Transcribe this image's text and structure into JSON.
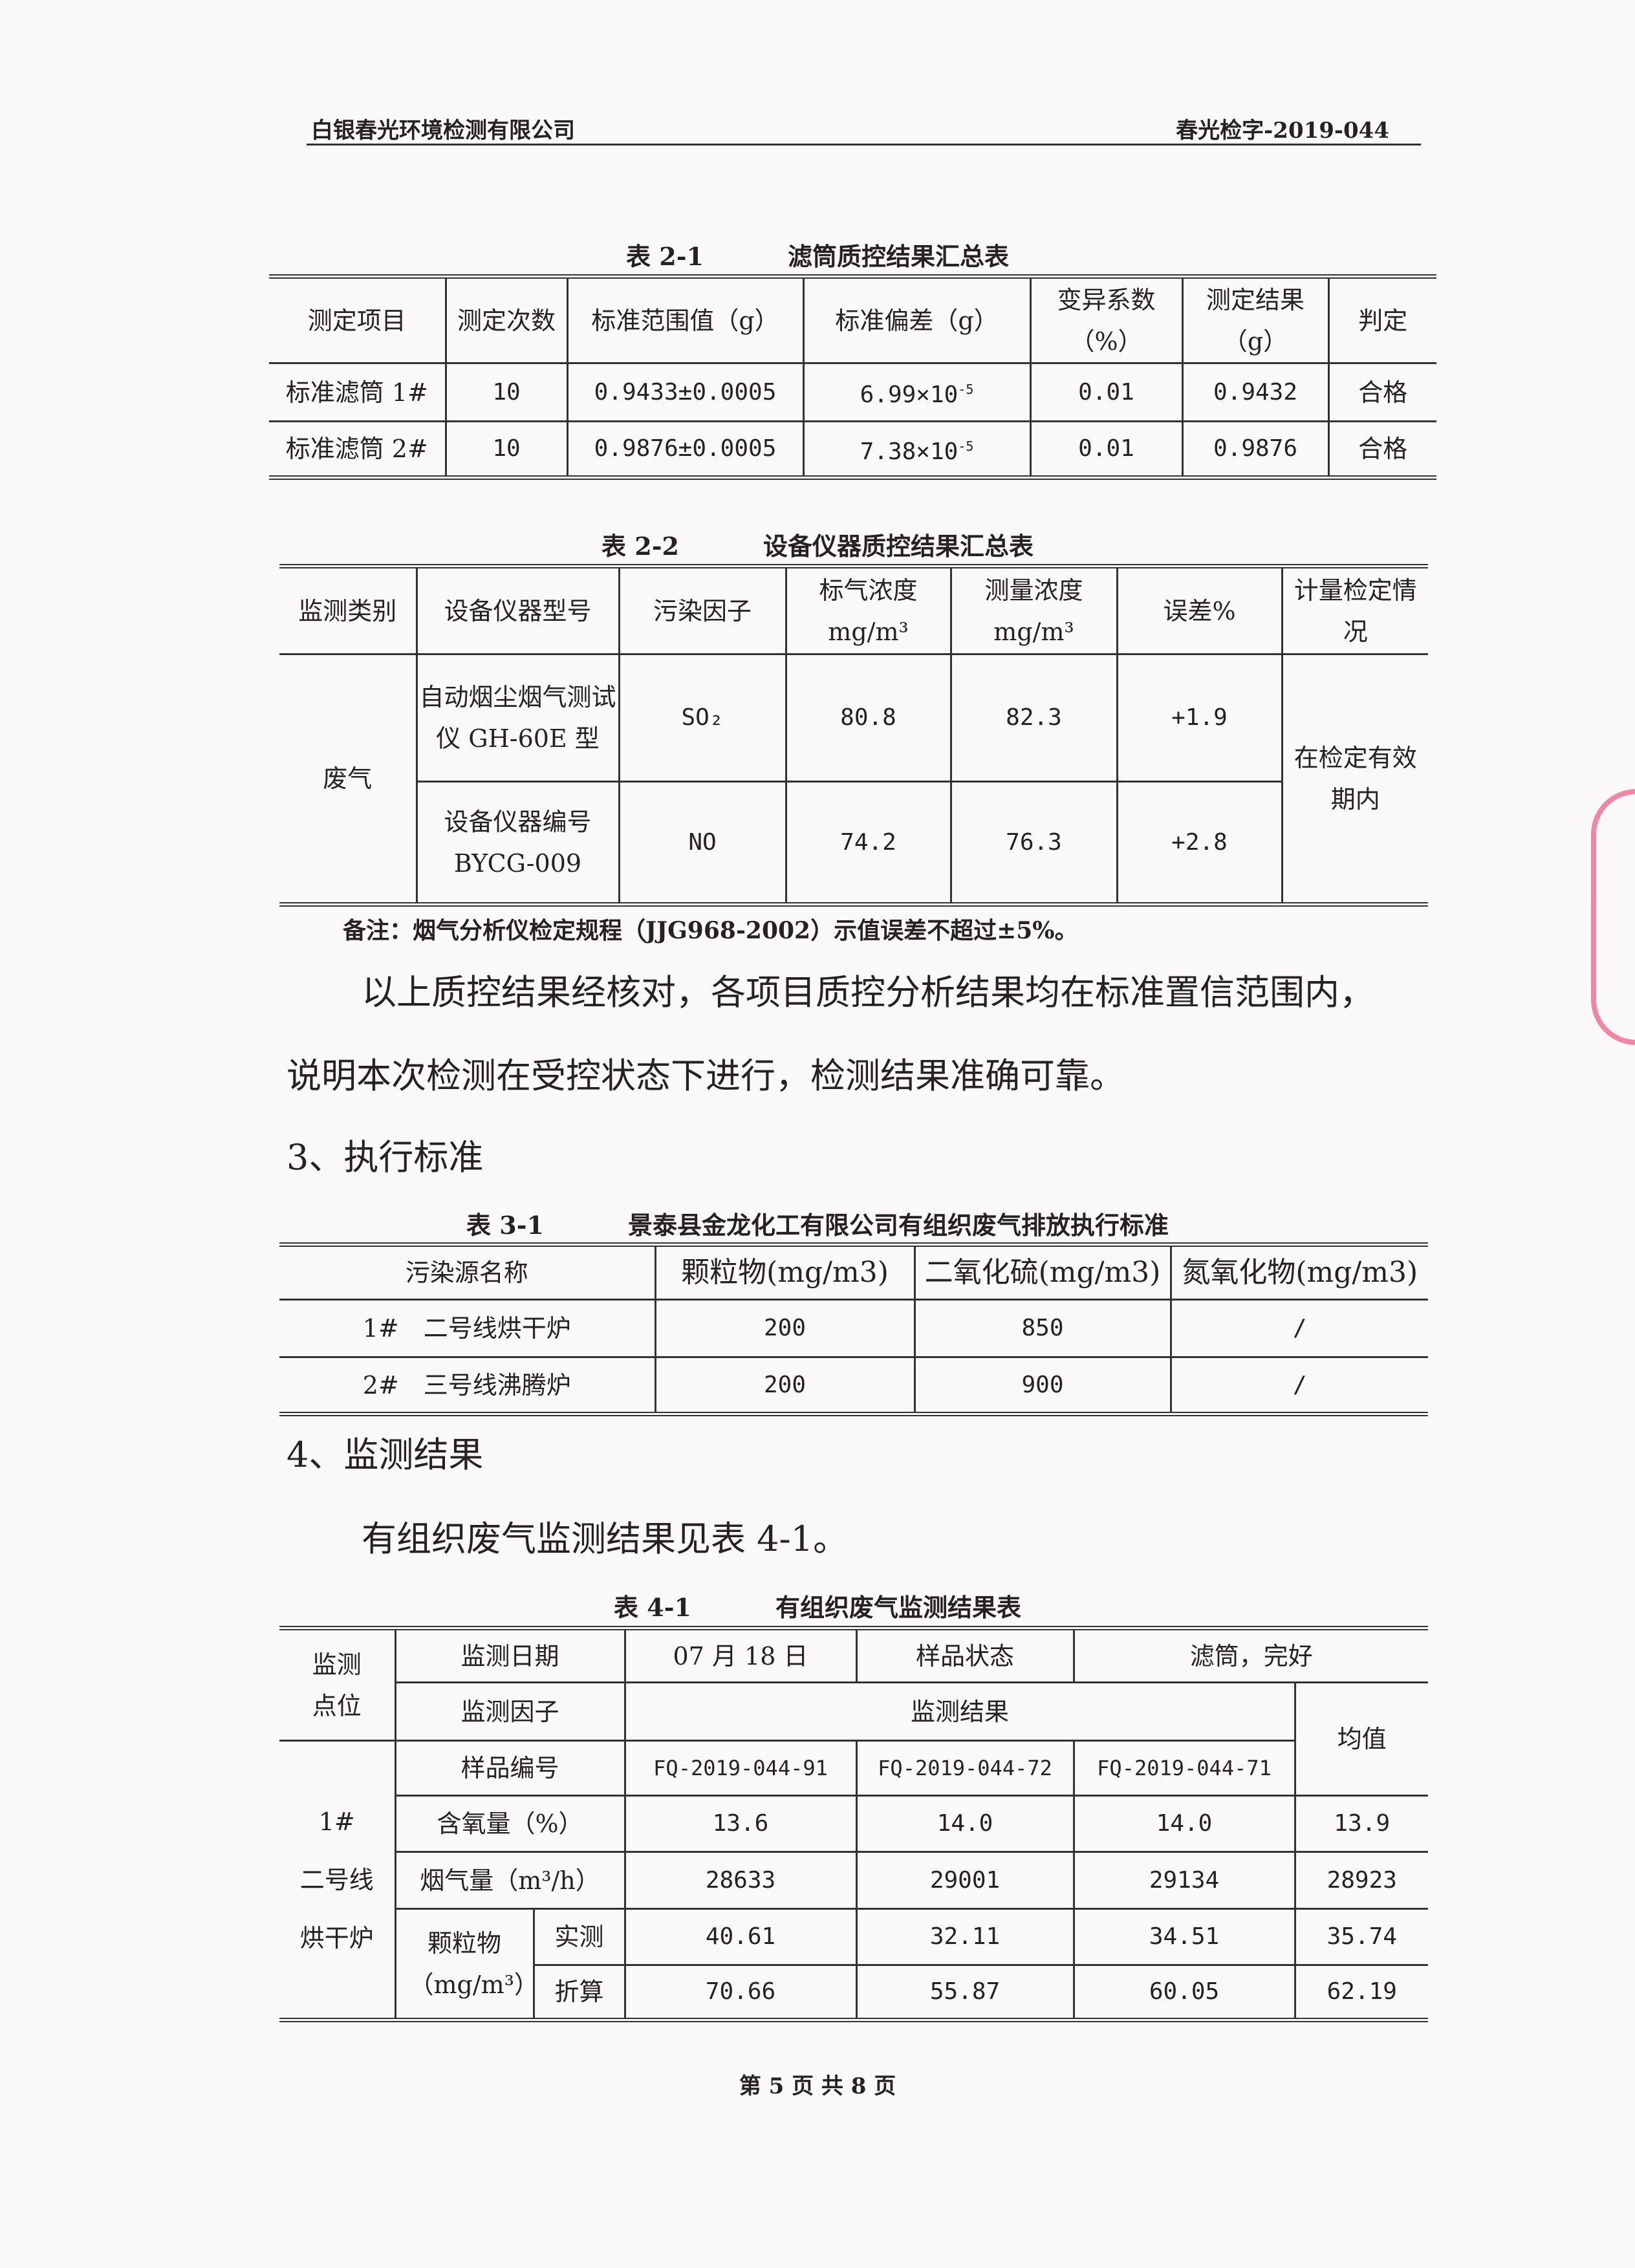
{
  "header": {
    "company": "白银春光环境检测有限公司",
    "doc_no": "春光检字-2019-044"
  },
  "table21": {
    "caption_no": "表 2-1",
    "caption": "滤筒质控结果汇总表",
    "headers": [
      "测定项目",
      "测定次数",
      "标准范围值（g）",
      "标准偏差（g）",
      "变异系数（%）",
      "测定结果（g）",
      "判定"
    ],
    "rows": [
      {
        "item": "标准滤筒 1#",
        "count": "10",
        "range": "0.9433±0.0005",
        "sd_mant": "6.99×10",
        "sd_exp": "-5",
        "cv": "0.01",
        "result": "0.9432",
        "verdict": "合格"
      },
      {
        "item": "标准滤筒 2#",
        "count": "10",
        "range": "0.9876±0.0005",
        "sd_mant": "7.38×10",
        "sd_exp": "-5",
        "cv": "0.01",
        "result": "0.9876",
        "verdict": "合格"
      }
    ]
  },
  "table22": {
    "caption_no": "表 2-2",
    "caption": "设备仪器质控结果汇总表",
    "headers": [
      "监测类别",
      "设备仪器型号",
      "污染因子",
      "标气浓度 mg/m³",
      "测量浓度 mg/m³",
      "误差%",
      "计量检定情况"
    ],
    "category": "废气",
    "instrument": "自动烟尘烟气测试仪 GH-60E 型",
    "instrument_no": "设备仪器编号 BYCG-009",
    "status": "在检定有效期内",
    "rows": [
      {
        "factor": "SO₂",
        "std": "80.8",
        "meas": "82.3",
        "err": "+1.9"
      },
      {
        "factor": "NO",
        "std": "74.2",
        "meas": "76.3",
        "err": "+2.8"
      }
    ]
  },
  "note": "备注：烟气分析仪检定规程（JJG968-2002）示值误差不超过±5%。",
  "para1a": "以上质控结果经核对，各项目质控分析结果均在标准置信范围内，",
  "para1b": "说明本次检测在受控状态下进行，检测结果准确可靠。",
  "section3": "3、执行标准",
  "table31": {
    "caption_no": "表 3-1",
    "caption": "景泰县金龙化工有限公司有组织废气排放执行标准",
    "headers": [
      "污染源名称",
      "颗粒物(mg/m3)",
      "二氧化硫(mg/m3)",
      "氮氧化物(mg/m3)"
    ],
    "rows": [
      [
        "1#　二号线烘干炉",
        "200",
        "850",
        "/"
      ],
      [
        "2#　三号线沸腾炉",
        "200",
        "900",
        "/"
      ]
    ]
  },
  "section4": "4、监测结果",
  "para2": "有组织废气监测结果见表 4-1。",
  "table41": {
    "caption_no": "表 4-1",
    "caption": "有组织废气监测结果表",
    "point_label": "监测点位",
    "date_label": "监测日期",
    "date": "07 月 18 日",
    "state_label": "样品状态",
    "state": "滤筒，完好",
    "factor_label": "监测因子",
    "result_label": "监测结果",
    "avg_label": "均值",
    "point": "1#　二号线　烘干炉",
    "sample_label": "样品编号",
    "samples": [
      "FQ-2019-044-91",
      "FQ-2019-044-72",
      "FQ-2019-044-71"
    ],
    "oxygen": {
      "label": "含氧量（%）",
      "values": [
        "13.6",
        "14.0",
        "14.0"
      ],
      "avg": "13.9"
    },
    "flow": {
      "label": "烟气量（m³/h）",
      "values": [
        "28633",
        "29001",
        "29134"
      ],
      "avg": "28923"
    },
    "pm_label": "颗粒物（mg/m³）",
    "measured": {
      "label": "实测",
      "values": [
        "40.61",
        "32.11",
        "34.51"
      ],
      "avg": "35.74"
    },
    "converted": {
      "label": "折算",
      "values": [
        "70.66",
        "55.87",
        "60.05"
      ],
      "avg": "62.19"
    }
  },
  "footer": "第 5 页 共 8 页"
}
